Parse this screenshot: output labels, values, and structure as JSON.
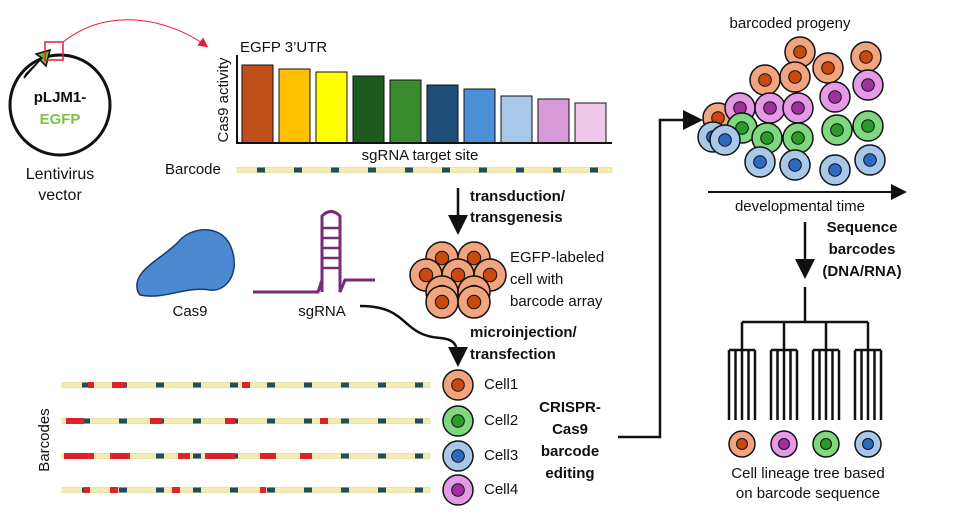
{
  "vector": {
    "name": [
      "pLJM1-",
      "EGFP"
    ],
    "caption": [
      "Lentivirus",
      "vector"
    ]
  },
  "activity_plot": {
    "title": "EGFP 3’UTR",
    "y_label": "Cas9 activity",
    "x_label": "sgRNA target site",
    "barcode_label": "Barcode"
  },
  "step1": [
    "transduction/",
    "transgenesis"
  ],
  "labeled_cell": [
    "EGFP-labeled",
    "cell with",
    "barcode array"
  ],
  "reagents": {
    "protein": "Cas9",
    "guide": "sgRNA"
  },
  "step2": [
    "microinjection/",
    "transfection"
  ],
  "cells": [
    "Cell1",
    "Cell2",
    "Cell3",
    "Cell4"
  ],
  "barcodes_label": "Barcodes",
  "step3": [
    "CRISPR-",
    "Cas9",
    "barcode",
    "editing"
  ],
  "progeny": {
    "title": "barcoded progeny",
    "axis": "developmental time"
  },
  "step4": [
    "Sequence",
    "barcodes",
    "(DNA/RNA)"
  ],
  "tree_caption": [
    "Cell lineage tree based",
    "on barcode sequence"
  ]
}
